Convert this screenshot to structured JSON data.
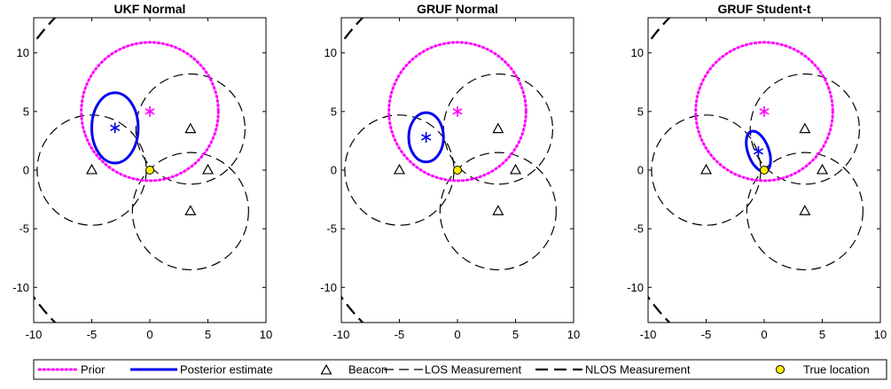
{
  "chart_data": [
    {
      "type": "scatter",
      "title": "UKF Normal",
      "xlabel": "",
      "ylabel": "",
      "xlim": [
        -10,
        10
      ],
      "ylim": [
        -13,
        13
      ],
      "xticks": [
        -10,
        -5,
        0,
        5,
        10
      ],
      "yticks": [
        -10,
        -5,
        0,
        5,
        10
      ],
      "grid": false,
      "series": [
        {
          "name": "Prior",
          "kind": "circle",
          "center": [
            0,
            5
          ],
          "radius": 5.9,
          "color": "#ff00ff",
          "style": "dotted"
        },
        {
          "name": "Posterior estimate",
          "kind": "ellipse",
          "center": [
            -3,
            3.6
          ],
          "semi_axes": [
            2,
            3
          ],
          "rotation_deg": 0,
          "color": "#0000ee",
          "style": "solid"
        },
        {
          "name": "Beacon",
          "kind": "markers",
          "points": [
            [
              -5,
              0
            ],
            [
              3.5,
              3.5
            ],
            [
              5,
              0
            ],
            [
              3.5,
              -3.5
            ]
          ]
        },
        {
          "name": "LOS Measurement",
          "kind": "circles",
          "circles": [
            {
              "center": [
                -5,
                0
              ],
              "radius": 4.7
            },
            {
              "center": [
                3.5,
                3.5
              ],
              "radius": 4.7
            },
            {
              "center": [
                3.5,
                -3.5
              ],
              "radius": 5.0
            }
          ],
          "style": "dashed"
        },
        {
          "name": "NLOS Measurement",
          "kind": "circle",
          "center": [
            5,
            0
          ],
          "radius": 18.5,
          "style": "dashed"
        },
        {
          "name": "True location",
          "kind": "marker",
          "point": [
            0,
            0
          ],
          "color": "#ffee00"
        },
        {
          "name": "Prior mean",
          "kind": "star",
          "point": [
            0,
            5
          ],
          "color": "#ff00ff"
        },
        {
          "name": "Estimate",
          "kind": "star",
          "point": [
            -3,
            3.6
          ],
          "color": "#0000ee"
        }
      ]
    },
    {
      "type": "scatter",
      "title": "GRUF Normal",
      "xlabel": "",
      "ylabel": "",
      "xlim": [
        -10,
        10
      ],
      "ylim": [
        -13,
        13
      ],
      "xticks": [
        -10,
        -5,
        0,
        5,
        10
      ],
      "yticks": [
        -10,
        -5,
        0,
        5,
        10
      ],
      "grid": false,
      "series": [
        {
          "name": "Prior",
          "kind": "circle",
          "center": [
            0,
            5
          ],
          "radius": 5.9,
          "color": "#ff00ff",
          "style": "dotted"
        },
        {
          "name": "Posterior estimate",
          "kind": "ellipse",
          "center": [
            -2.7,
            2.8
          ],
          "semi_axes": [
            1.5,
            2.1
          ],
          "rotation_deg": 0,
          "color": "#0000ee",
          "style": "solid"
        },
        {
          "name": "Beacon",
          "kind": "markers",
          "points": [
            [
              -5,
              0
            ],
            [
              3.5,
              3.5
            ],
            [
              5,
              0
            ],
            [
              3.5,
              -3.5
            ]
          ]
        },
        {
          "name": "LOS Measurement",
          "kind": "circles",
          "circles": [
            {
              "center": [
                -5,
                0
              ],
              "radius": 4.7
            },
            {
              "center": [
                3.5,
                3.5
              ],
              "radius": 4.7
            },
            {
              "center": [
                3.5,
                -3.5
              ],
              "radius": 5.0
            }
          ],
          "style": "dashed"
        },
        {
          "name": "NLOS Measurement",
          "kind": "circle",
          "center": [
            5,
            0
          ],
          "radius": 18.5,
          "style": "dashed"
        },
        {
          "name": "True location",
          "kind": "marker",
          "point": [
            0,
            0
          ],
          "color": "#ffee00"
        },
        {
          "name": "Prior mean",
          "kind": "star",
          "point": [
            0,
            5
          ],
          "color": "#ff00ff"
        },
        {
          "name": "Estimate",
          "kind": "star",
          "point": [
            -2.7,
            2.8
          ],
          "color": "#0000ee"
        }
      ]
    },
    {
      "type": "scatter",
      "title": "GRUF Student-t",
      "xlabel": "",
      "ylabel": "",
      "xlim": [
        -10,
        10
      ],
      "ylim": [
        -13,
        13
      ],
      "xticks": [
        -10,
        -5,
        0,
        5,
        10
      ],
      "yticks": [
        -10,
        -5,
        0,
        5,
        10
      ],
      "grid": false,
      "series": [
        {
          "name": "Prior",
          "kind": "circle",
          "center": [
            0,
            5
          ],
          "radius": 5.9,
          "color": "#ff00ff",
          "style": "dotted"
        },
        {
          "name": "Posterior estimate",
          "kind": "ellipse",
          "center": [
            -0.5,
            1.6
          ],
          "semi_axes": [
            0.9,
            1.8
          ],
          "rotation_deg": -20,
          "color": "#0000ee",
          "style": "solid"
        },
        {
          "name": "Beacon",
          "kind": "markers",
          "points": [
            [
              -5,
              0
            ],
            [
              3.5,
              3.5
            ],
            [
              5,
              0
            ],
            [
              3.5,
              -3.5
            ]
          ]
        },
        {
          "name": "LOS Measurement",
          "kind": "circles",
          "circles": [
            {
              "center": [
                -5,
                0
              ],
              "radius": 4.7
            },
            {
              "center": [
                3.5,
                3.5
              ],
              "radius": 4.7
            },
            {
              "center": [
                3.5,
                -3.5
              ],
              "radius": 5.0
            }
          ],
          "style": "dashed"
        },
        {
          "name": "NLOS Measurement",
          "kind": "circle",
          "center": [
            5,
            0
          ],
          "radius": 18.5,
          "style": "dashed"
        },
        {
          "name": "True location",
          "kind": "marker",
          "point": [
            0,
            0
          ],
          "color": "#ffee00"
        },
        {
          "name": "Prior mean",
          "kind": "star",
          "point": [
            0,
            5
          ],
          "color": "#ff00ff"
        },
        {
          "name": "Estimate",
          "kind": "star",
          "point": [
            -0.5,
            1.6
          ],
          "color": "#0000ee"
        }
      ]
    }
  ],
  "legend": {
    "placement": "bottom",
    "entries": [
      {
        "label": "Prior",
        "icon": "dotted-line",
        "color": "#ff00ff"
      },
      {
        "label": "Posterior estimate",
        "icon": "solid-line",
        "color": "#0000ee"
      },
      {
        "label": "Beacon",
        "icon": "triangle-marker",
        "color": "#000000"
      },
      {
        "label": "LOS Measurement",
        "icon": "dashed-line",
        "color": "#000000"
      },
      {
        "label": "NLOS Measurement",
        "icon": "long-dashed-line",
        "color": "#000000"
      },
      {
        "label": "True location",
        "icon": "circle-marker",
        "color": "#ffee00"
      }
    ]
  }
}
